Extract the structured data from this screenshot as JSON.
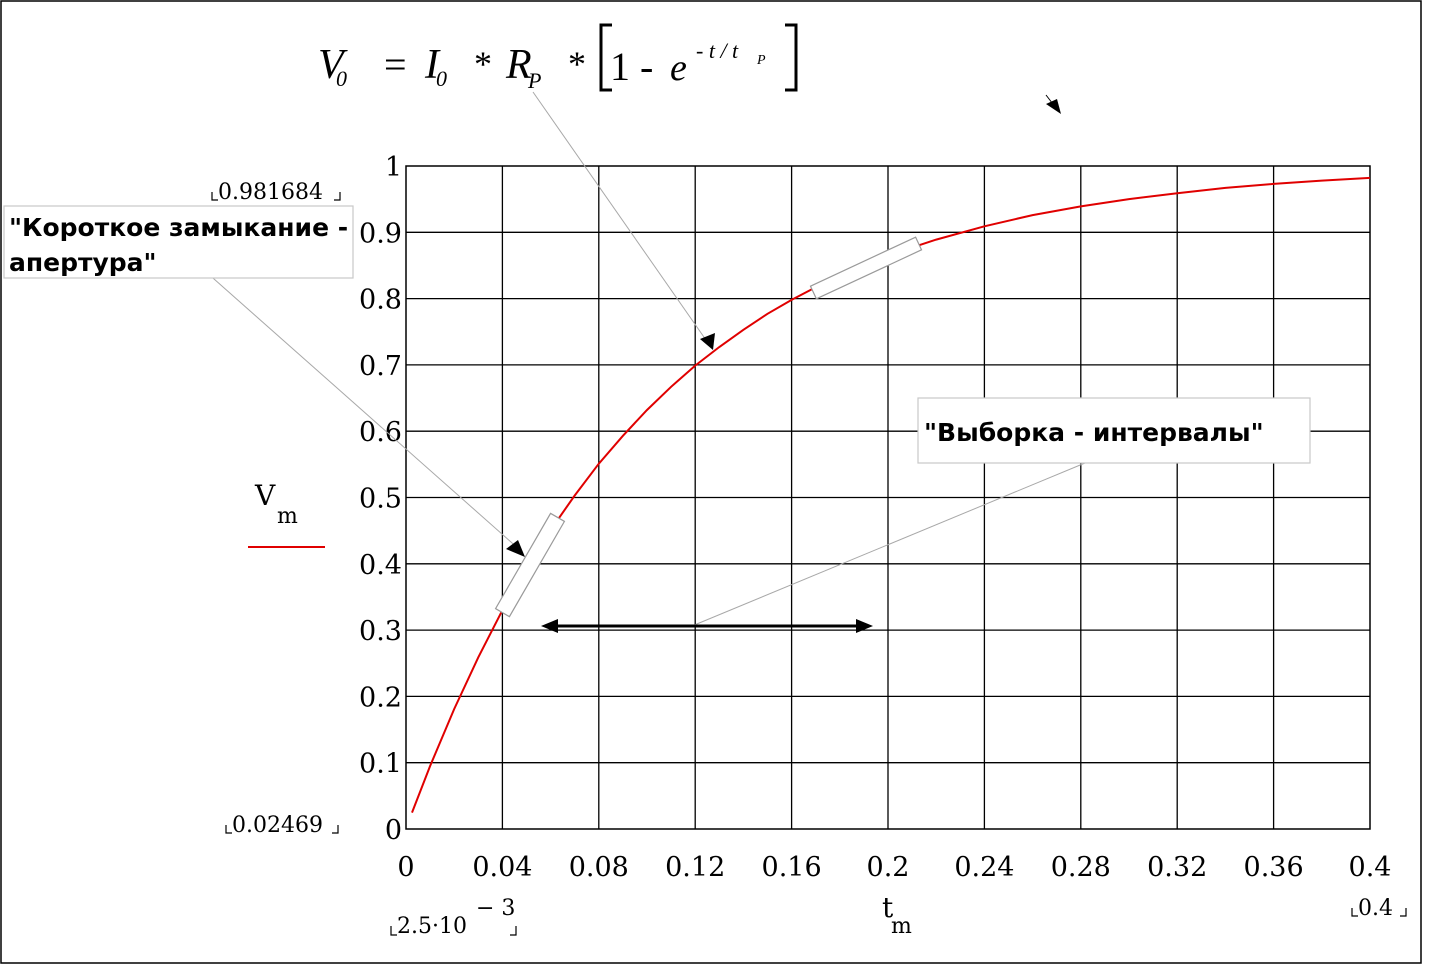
{
  "formula": {
    "V": "V",
    "V_sub": "0",
    "eq": "=",
    "I": "I",
    "I_sub": "0",
    "mul1": "*",
    "R": "R",
    "R_sub": "P",
    "mul2": "*",
    "one_minus": "1 -",
    "e": "e",
    "exponent": "- t / t",
    "exp_sub": "P"
  },
  "chart_data": {
    "type": "line",
    "xlim": [
      0,
      0.4
    ],
    "ylim": [
      0,
      1
    ],
    "x_ticks": [
      "0",
      "0.04",
      "0.08",
      "0.12",
      "0.16",
      "0.2",
      "0.24",
      "0.28",
      "0.32",
      "0.36",
      "0.4"
    ],
    "y_ticks": [
      "0",
      "0.1",
      "0.2",
      "0.3",
      "0.4",
      "0.5",
      "0.6",
      "0.7",
      "0.8",
      "0.9",
      "1"
    ],
    "grid": true,
    "xlabel": "t",
    "xlabel_sub": "m",
    "ylabel": "V",
    "ylabel_sub": "m",
    "range_labels": {
      "y_max": "0.981684",
      "y_min": "0.02469",
      "x_min_mantissa": "2.5·10",
      "x_min_exponent": "− 3",
      "x_max": "0.4"
    },
    "series": [
      {
        "color": "#e00000",
        "x": [
          0.0025,
          0.01,
          0.02,
          0.03,
          0.04,
          0.05,
          0.06,
          0.07,
          0.08,
          0.09,
          0.1,
          0.11,
          0.12,
          0.13,
          0.14,
          0.15,
          0.16,
          0.17,
          0.18,
          0.19,
          0.2,
          0.22,
          0.24,
          0.26,
          0.28,
          0.3,
          0.32,
          0.34,
          0.36,
          0.38,
          0.4
        ],
        "y": [
          0.0247,
          0.095,
          0.181,
          0.259,
          0.33,
          0.394,
          0.451,
          0.503,
          0.551,
          0.593,
          0.632,
          0.667,
          0.699,
          0.727,
          0.753,
          0.777,
          0.798,
          0.817,
          0.835,
          0.85,
          0.865,
          0.889,
          0.909,
          0.926,
          0.939,
          0.95,
          0.959,
          0.967,
          0.973,
          0.978,
          0.982
        ]
      }
    ],
    "annotations": [
      "\"Короткое замыкание - апертура\"",
      "\"Выборка - интервалы\""
    ]
  },
  "callouts": {
    "short_circuit": {
      "line1": "\"Короткое замыкание -",
      "line2": "апертура\""
    },
    "sampling": {
      "text": "\"Выборка - интервалы\""
    }
  }
}
